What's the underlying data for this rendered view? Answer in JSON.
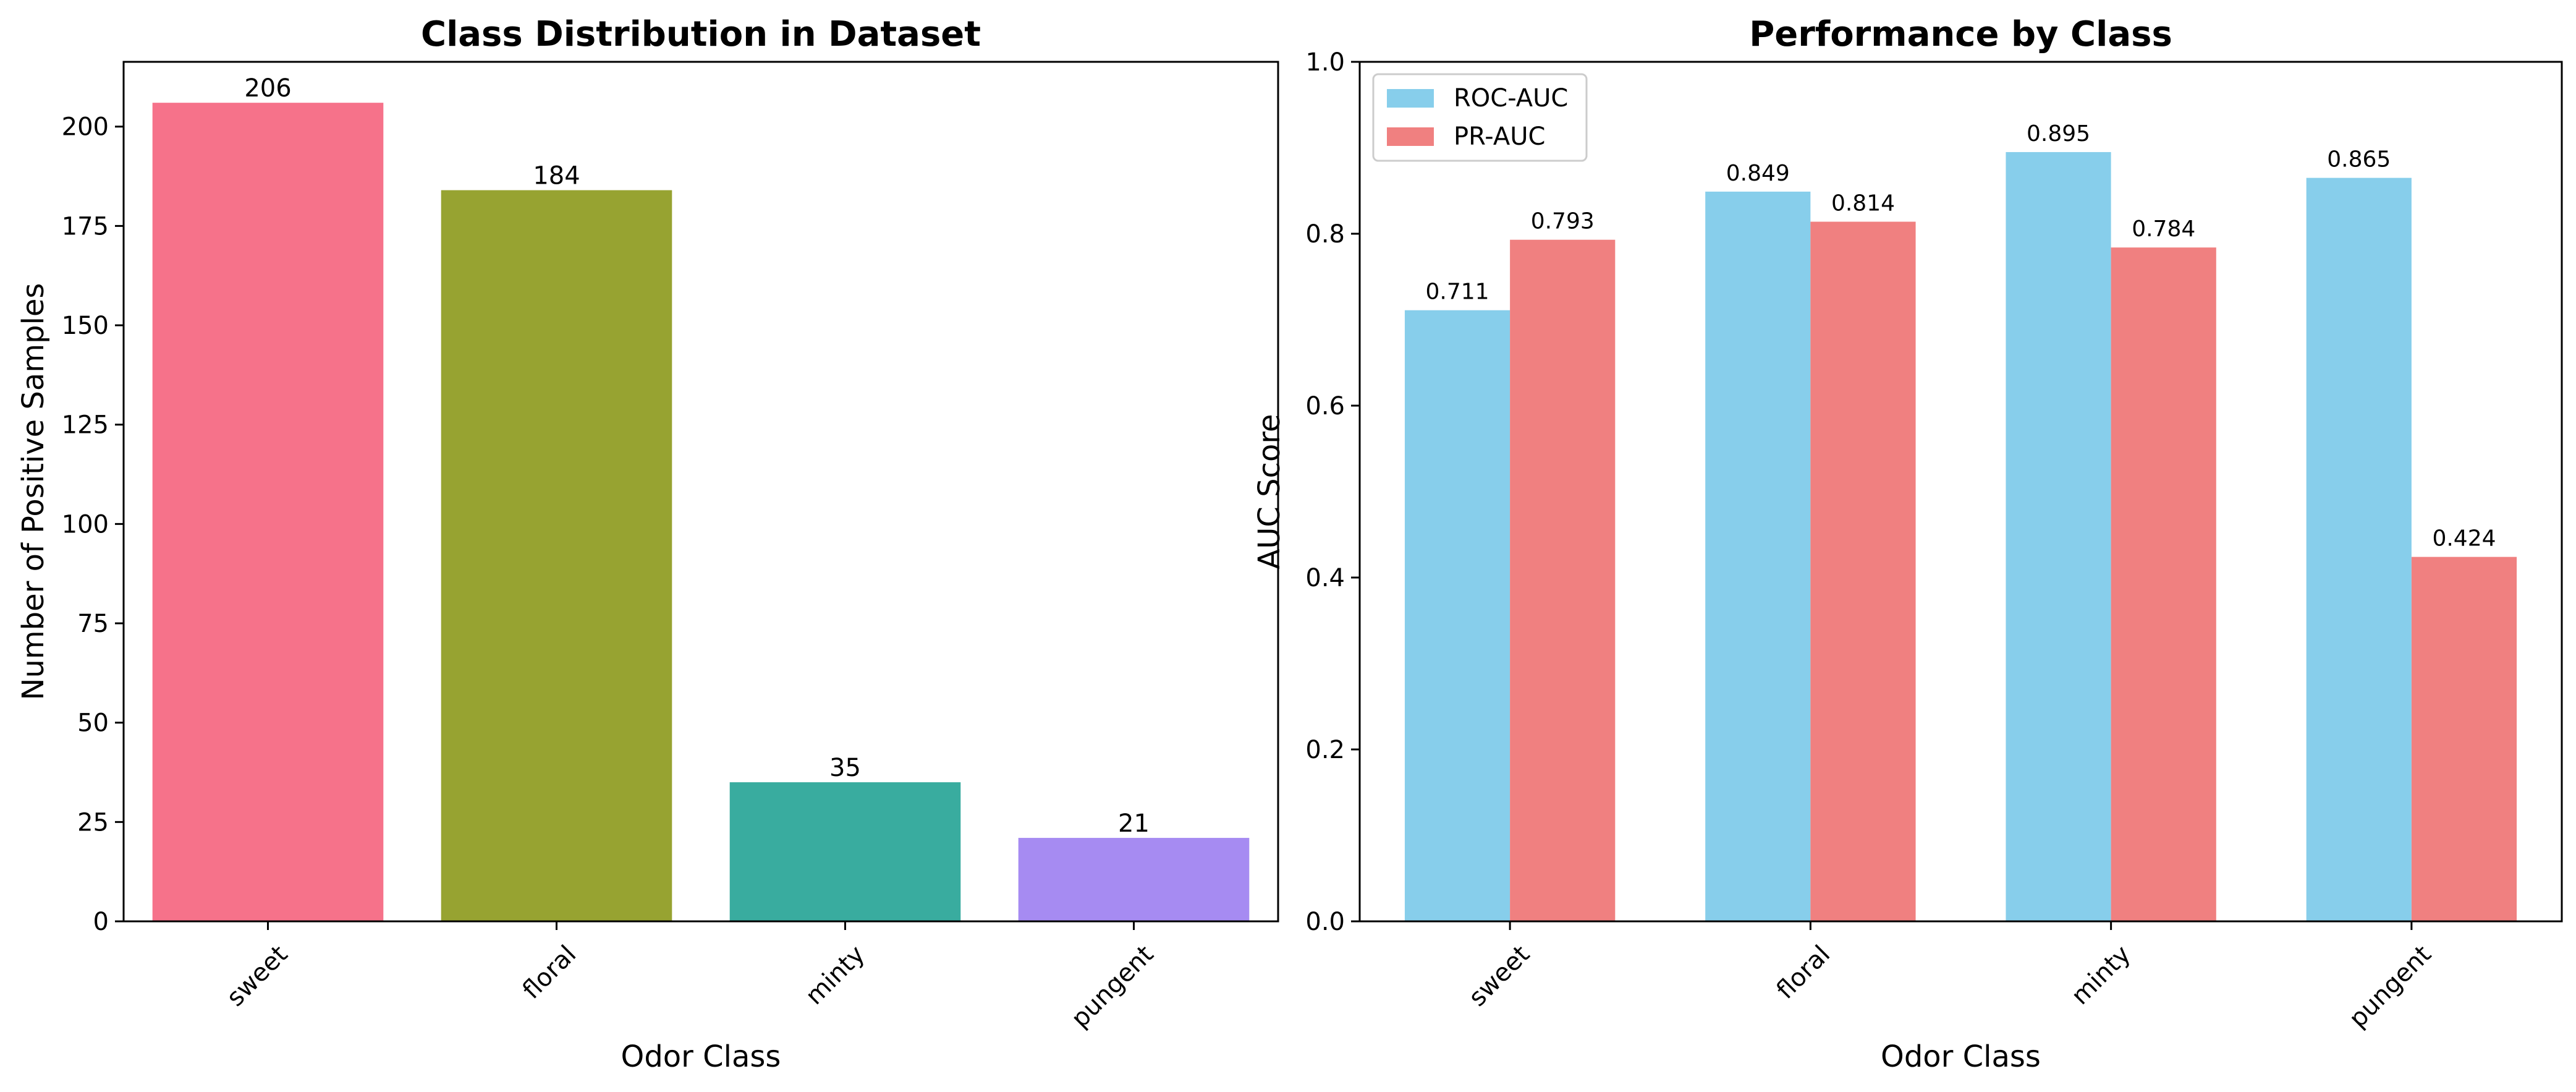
{
  "chart_data": [
    {
      "type": "bar",
      "title": "Class Distribution in Dataset",
      "xlabel": "Odor Class",
      "ylabel": "Number of Positive Samples",
      "categories": [
        "sweet",
        "floral",
        "minty",
        "pungent"
      ],
      "values": [
        206,
        184,
        35,
        21
      ],
      "data_labels": [
        "206",
        "184",
        "35",
        "21"
      ],
      "colors": [
        "#f6728a",
        "#97a331",
        "#39ac9f",
        "#a68bf2"
      ],
      "ylim": [
        0,
        216.3
      ],
      "yticks": [
        0,
        25,
        50,
        75,
        100,
        125,
        150,
        175,
        200
      ],
      "ytick_labels": [
        "0",
        "25",
        "50",
        "75",
        "100",
        "125",
        "150",
        "175",
        "200"
      ],
      "grid": false
    },
    {
      "type": "bar",
      "title": "Performance by Class",
      "xlabel": "Odor Class",
      "ylabel": "AUC Score",
      "categories": [
        "sweet",
        "floral",
        "minty",
        "pungent"
      ],
      "series": [
        {
          "name": "ROC-AUC",
          "values": [
            0.711,
            0.849,
            0.895,
            0.865
          ],
          "data_labels": [
            "0.711",
            "0.849",
            "0.895",
            "0.865"
          ],
          "color": "#87ceeb"
        },
        {
          "name": "PR-AUC",
          "values": [
            0.793,
            0.814,
            0.784,
            0.424
          ],
          "data_labels": [
            "0.793",
            "0.814",
            "0.784",
            "0.424"
          ],
          "color": "#f08080"
        }
      ],
      "ylim": [
        0,
        1.0
      ],
      "yticks": [
        0,
        0.2,
        0.4,
        0.6,
        0.8,
        1.0
      ],
      "ytick_labels": [
        "0.0",
        "0.2",
        "0.4",
        "0.6",
        "0.8",
        "1.0"
      ],
      "legend": "top-left",
      "grid": false
    }
  ]
}
